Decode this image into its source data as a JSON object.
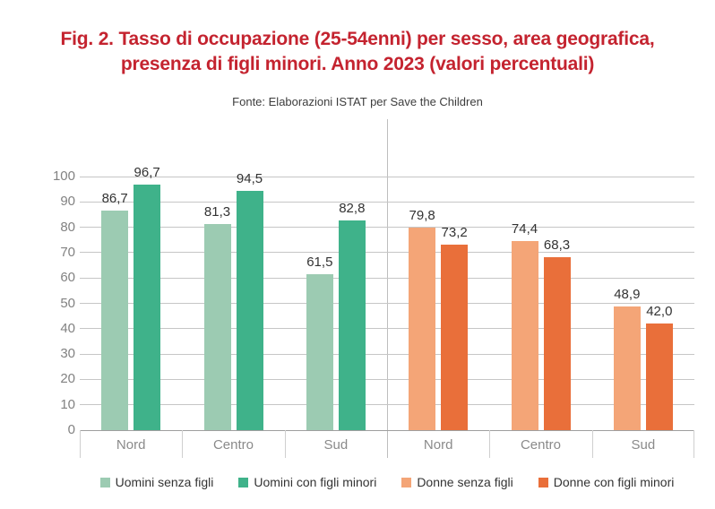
{
  "title": {
    "lines": [
      "Fig. 2. Tasso di occupazione (25-54enni) per sesso, area geografica,",
      "presenza di figli minori. Anno 2023 (valori percentuali)"
    ],
    "color": "#c4232f"
  },
  "source": "Fonte: Elaborazioni ISTAT per Save the Children",
  "chart_data": {
    "type": "bar",
    "title": "Fig. 2. Tasso di occupazione (25-54enni) per sesso, area geografica, presenza di figli minori. Anno 2023 (valori percentuali)",
    "source": "Fonte: Elaborazioni ISTAT per Save the Children",
    "ylim": [
      0,
      100
    ],
    "yticks": [
      0,
      10,
      20,
      30,
      40,
      50,
      60,
      70,
      80,
      90,
      100
    ],
    "grid": true,
    "decimal_separator": ",",
    "value_labels": true,
    "legend_position": "bottom",
    "panels": [
      {
        "categories": [
          "Nord",
          "Centro",
          "Sud"
        ],
        "series": [
          {
            "name": "Uomini senza figli",
            "color": "#9ccbb2",
            "values": [
              86.7,
              81.3,
              61.5
            ]
          },
          {
            "name": "Uomini con figli minori",
            "color": "#3fb28a",
            "values": [
              96.7,
              94.5,
              82.8
            ]
          }
        ]
      },
      {
        "categories": [
          "Nord",
          "Centro",
          "Sud"
        ],
        "series": [
          {
            "name": "Donne senza figli",
            "color": "#f4a577",
            "values": [
              79.8,
              74.4,
              48.9
            ]
          },
          {
            "name": "Donne con figli minori",
            "color": "#e96f3a",
            "values": [
              73.2,
              68.3,
              42.0
            ]
          }
        ]
      }
    ],
    "legend": [
      {
        "label": "Uomini senza figli",
        "color": "#9ccbb2"
      },
      {
        "label": "Uomini con figli minori",
        "color": "#3fb28a"
      },
      {
        "label": "Donne senza figli",
        "color": "#f4a577"
      },
      {
        "label": "Donne con figli minori",
        "color": "#e96f3a"
      }
    ]
  }
}
